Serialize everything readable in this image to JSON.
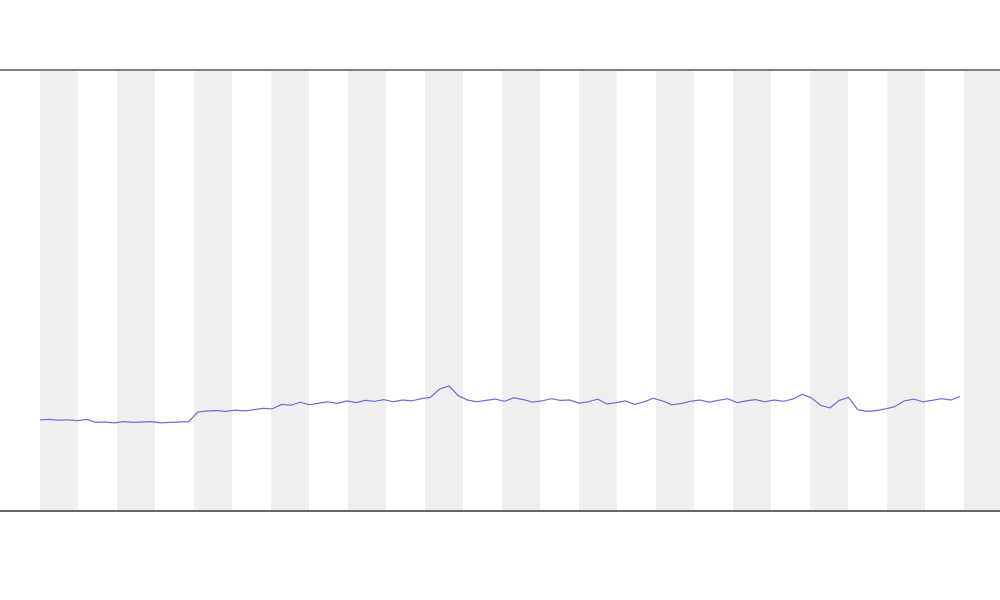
{
  "chart_data": {
    "type": "line",
    "color": "#6b6bdc",
    "x": [
      0,
      1,
      2,
      3,
      4,
      5,
      6,
      7,
      8,
      9,
      10,
      11,
      12,
      13,
      14,
      15,
      16,
      17,
      18,
      19,
      20,
      21,
      22,
      23,
      24,
      25,
      26,
      27,
      28,
      29,
      30,
      31,
      32,
      33,
      34,
      35,
      36,
      37,
      38,
      39,
      40,
      41,
      42,
      43,
      44,
      45,
      46,
      47,
      48,
      49,
      50,
      51,
      52,
      53,
      54,
      55,
      56,
      57,
      58,
      59,
      60,
      61,
      62,
      63,
      64,
      65,
      66,
      67,
      68,
      69,
      70,
      71,
      72,
      73,
      74,
      75,
      76,
      77,
      78,
      79,
      80,
      81,
      82,
      83,
      84,
      85,
      86,
      87,
      88,
      89,
      90,
      91,
      92,
      93,
      94,
      95,
      96,
      97,
      98,
      99
    ],
    "values": [
      20.5,
      20.6,
      20.4,
      20.5,
      20.3,
      20.6,
      19.9,
      20.0,
      19.8,
      20.1,
      19.9,
      20.0,
      20.1,
      19.8,
      19.9,
      20.0,
      20.1,
      22.3,
      22.5,
      22.6,
      22.4,
      22.7,
      22.5,
      22.8,
      23.1,
      23.0,
      24.0,
      23.8,
      24.5,
      23.9,
      24.3,
      24.6,
      24.2,
      24.8,
      24.4,
      24.9,
      24.7,
      25.1,
      24.6,
      25.0,
      24.8,
      25.3,
      25.6,
      27.5,
      28.2,
      26.0,
      25.0,
      24.6,
      24.9,
      25.2,
      24.7,
      25.5,
      25.1,
      24.5,
      24.8,
      25.3,
      24.9,
      25.0,
      24.3,
      24.6,
      25.2,
      24.1,
      24.4,
      24.8,
      24.0,
      24.6,
      25.4,
      24.8,
      23.9,
      24.2,
      24.7,
      25.0,
      24.5,
      24.9,
      25.3,
      24.4,
      24.8,
      25.1,
      24.6,
      25.0,
      24.7,
      25.2,
      26.3,
      25.5,
      23.8,
      23.2,
      24.9,
      25.6,
      22.8,
      22.4,
      22.6,
      23.0,
      23.5,
      24.8,
      25.2,
      24.6,
      24.9,
      25.3,
      25.0,
      25.8
    ],
    "xlim": [
      0,
      99
    ],
    "ylim": [
      0,
      100
    ]
  }
}
